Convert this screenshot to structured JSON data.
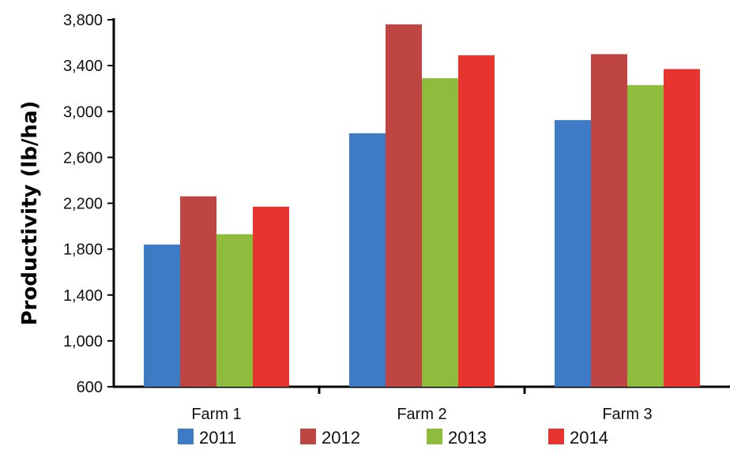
{
  "chart_data": {
    "type": "bar",
    "title": "",
    "xlabel": "",
    "ylabel": "Productivity (lb/ha)",
    "ylim": [
      600,
      3800
    ],
    "yticks": [
      "600",
      "1,000",
      "1,400",
      "1,800",
      "2,200",
      "2,600",
      "3,000",
      "3,400",
      "3,800"
    ],
    "ytick_values": [
      600,
      1000,
      1400,
      1800,
      2200,
      2600,
      3000,
      3400,
      3800
    ],
    "categories": [
      "Farm 1",
      "Farm 2",
      "Farm 3"
    ],
    "series": [
      {
        "name": "2011",
        "color": "#3d7bc4",
        "values": [
          1840,
          2810,
          2925
        ]
      },
      {
        "name": "2012",
        "color": "#bf4542",
        "values": [
          2260,
          3760,
          3500
        ]
      },
      {
        "name": "2013",
        "color": "#8fbc3c",
        "values": [
          1930,
          3290,
          3230
        ]
      },
      {
        "name": "2014",
        "color": "#e8342f",
        "values": [
          2170,
          3490,
          3370
        ]
      }
    ],
    "grid": false,
    "legend_position": "bottom"
  }
}
